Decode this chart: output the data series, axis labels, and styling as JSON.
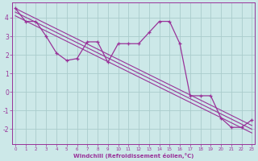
{
  "xlabel": "Windchill (Refroidissement éolien,°C)",
  "background_color": "#cce8e8",
  "grid_color": "#aacccc",
  "line_color": "#993399",
  "hours": [
    0,
    1,
    2,
    3,
    4,
    5,
    6,
    7,
    8,
    9,
    10,
    11,
    12,
    13,
    14,
    15,
    16,
    17,
    18,
    19,
    20,
    21,
    22,
    23
  ],
  "windchill": [
    4.5,
    3.8,
    3.8,
    3.0,
    2.1,
    1.7,
    1.8,
    2.7,
    2.7,
    1.6,
    2.6,
    2.6,
    2.6,
    3.2,
    3.8,
    3.8,
    2.6,
    -0.2,
    -0.2,
    -0.2,
    -1.4,
    -1.9,
    -1.9,
    -1.5
  ],
  "trend_lines": [
    {
      "x": [
        0,
        23
      ],
      "y": [
        4.5,
        -1.8
      ]
    },
    {
      "x": [
        0,
        23
      ],
      "y": [
        4.3,
        -2.0
      ]
    },
    {
      "x": [
        0,
        23
      ],
      "y": [
        4.1,
        -2.2
      ]
    }
  ],
  "ylim": [
    -2.8,
    4.8
  ],
  "xlim": [
    -0.3,
    23.3
  ],
  "yticks": [
    -2,
    -1,
    0,
    1,
    2,
    3,
    4
  ],
  "xticks": [
    0,
    1,
    2,
    3,
    4,
    5,
    6,
    7,
    8,
    9,
    10,
    11,
    12,
    13,
    14,
    15,
    16,
    17,
    18,
    19,
    20,
    21,
    22,
    23
  ]
}
